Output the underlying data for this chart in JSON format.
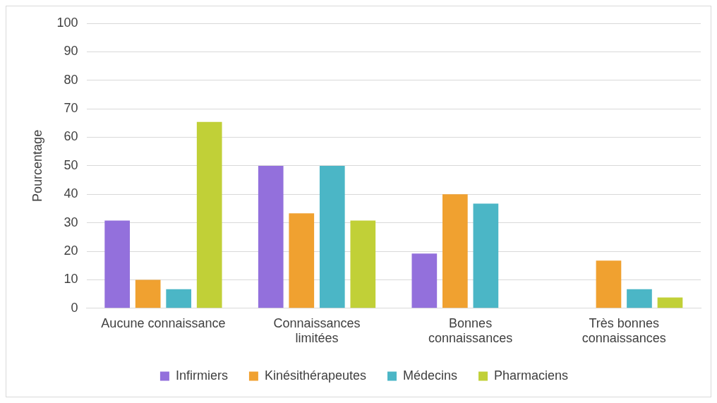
{
  "chart_data": {
    "type": "bar",
    "ylabel": "Pourcentage",
    "categories": [
      "Aucune connaissance",
      "Connaissances limitées",
      "Bonnes connaissances",
      "Très bonnes connaissances"
    ],
    "series": [
      {
        "name": "Infirmiers",
        "color": "#9370dc",
        "values": [
          30.8,
          50,
          19.2,
          0
        ]
      },
      {
        "name": "Kinésithérapeutes",
        "color": "#f0a130",
        "values": [
          10,
          33.3,
          40,
          16.7
        ]
      },
      {
        "name": "Médecins",
        "color": "#4bb6c6",
        "values": [
          6.7,
          50,
          36.7,
          6.7
        ]
      },
      {
        "name": "Pharmaciens",
        "color": "#c1d037",
        "values": [
          65.4,
          30.8,
          0,
          3.8
        ]
      }
    ],
    "ylim": [
      0,
      100
    ],
    "yticks": [
      0,
      10,
      20,
      30,
      40,
      50,
      60,
      70,
      80,
      90,
      100
    ],
    "grid": "y",
    "legend": "bottom"
  }
}
